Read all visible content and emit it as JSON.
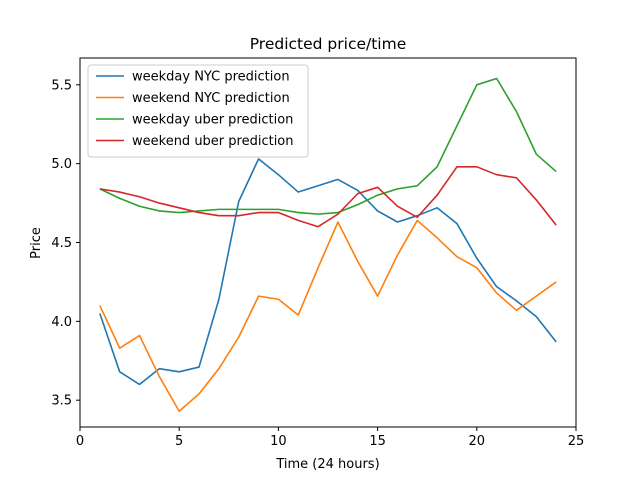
{
  "chart_data": {
    "type": "line",
    "title": "Predicted price/time",
    "xlabel": "Time (24 hours)",
    "ylabel": "Price",
    "xlim": [
      0,
      25
    ],
    "ylim": [
      3.33,
      5.67
    ],
    "xticks": [
      0,
      5,
      10,
      15,
      20,
      25
    ],
    "yticks": [
      3.5,
      4.0,
      4.5,
      5.0,
      5.5
    ],
    "ytick_labels": [
      "3.5",
      "4.0",
      "4.5",
      "5.0",
      "5.5"
    ],
    "grid": false,
    "legend_position": "top-left",
    "x": [
      1,
      2,
      3,
      4,
      5,
      6,
      7,
      8,
      9,
      10,
      11,
      12,
      13,
      14,
      15,
      16,
      17,
      18,
      19,
      20,
      21,
      22,
      23,
      24
    ],
    "series": [
      {
        "name": "weekday NYC prediction",
        "color": "#1f77b4",
        "values": [
          4.05,
          3.68,
          3.6,
          3.7,
          3.68,
          3.71,
          4.14,
          4.76,
          5.03,
          4.93,
          4.82,
          4.86,
          4.9,
          4.83,
          4.7,
          4.63,
          4.67,
          4.72,
          4.62,
          4.4,
          4.22,
          4.13,
          4.03,
          3.87
        ]
      },
      {
        "name": "weekend NYC prediction",
        "color": "#ff7f0e",
        "values": [
          4.1,
          3.83,
          3.91,
          3.65,
          3.43,
          3.54,
          3.7,
          3.9,
          4.16,
          4.14,
          4.04,
          4.34,
          4.63,
          4.38,
          4.16,
          4.42,
          4.64,
          4.53,
          4.41,
          4.34,
          4.18,
          4.07,
          4.16,
          4.25
        ]
      },
      {
        "name": "weekday uber prediction",
        "color": "#2ca02c",
        "values": [
          4.84,
          4.78,
          4.73,
          4.7,
          4.69,
          4.7,
          4.71,
          4.71,
          4.71,
          4.71,
          4.69,
          4.68,
          4.69,
          4.74,
          4.8,
          4.84,
          4.86,
          4.98,
          5.24,
          5.5,
          5.54,
          5.33,
          5.06,
          4.95
        ]
      },
      {
        "name": "weekend uber prediction",
        "color": "#d62728",
        "values": [
          4.84,
          4.82,
          4.79,
          4.75,
          4.72,
          4.69,
          4.67,
          4.67,
          4.69,
          4.69,
          4.64,
          4.6,
          4.68,
          4.81,
          4.85,
          4.73,
          4.66,
          4.8,
          4.98,
          4.98,
          4.93,
          4.91,
          4.77,
          4.61
        ]
      }
    ]
  }
}
